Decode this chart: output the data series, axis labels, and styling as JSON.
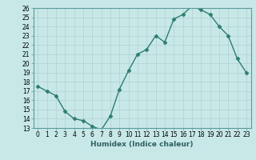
{
  "xlabel": "Humidex (Indice chaleur)",
  "ylabel": "",
  "x": [
    0,
    1,
    2,
    3,
    4,
    5,
    6,
    7,
    8,
    9,
    10,
    11,
    12,
    13,
    14,
    15,
    16,
    17,
    18,
    19,
    20,
    21,
    22,
    23
  ],
  "y": [
    17.5,
    17.0,
    16.5,
    14.8,
    14.0,
    13.8,
    13.2,
    12.8,
    14.3,
    17.2,
    19.2,
    21.0,
    21.5,
    23.0,
    22.3,
    24.8,
    25.3,
    26.2,
    25.8,
    25.3,
    24.0,
    23.0,
    20.5,
    19.0
  ],
  "ylim": [
    13,
    26
  ],
  "xlim": [
    -0.5,
    23.5
  ],
  "yticks": [
    13,
    14,
    15,
    16,
    17,
    18,
    19,
    20,
    21,
    22,
    23,
    24,
    25,
    26
  ],
  "xticks": [
    0,
    1,
    2,
    3,
    4,
    5,
    6,
    7,
    8,
    9,
    10,
    11,
    12,
    13,
    14,
    15,
    16,
    17,
    18,
    19,
    20,
    21,
    22,
    23
  ],
  "line_color": "#2e7d6e",
  "marker": "D",
  "marker_size": 2.5,
  "bg_color": "#c8e8e8",
  "grid_color": "#b0d0d0",
  "fig_bg": "#c8e8e8",
  "xlabel_color": "#2e6060",
  "tick_color": "#000000",
  "tick_fontsize": 5.5,
  "xlabel_fontsize": 6.5,
  "linewidth": 1.0
}
